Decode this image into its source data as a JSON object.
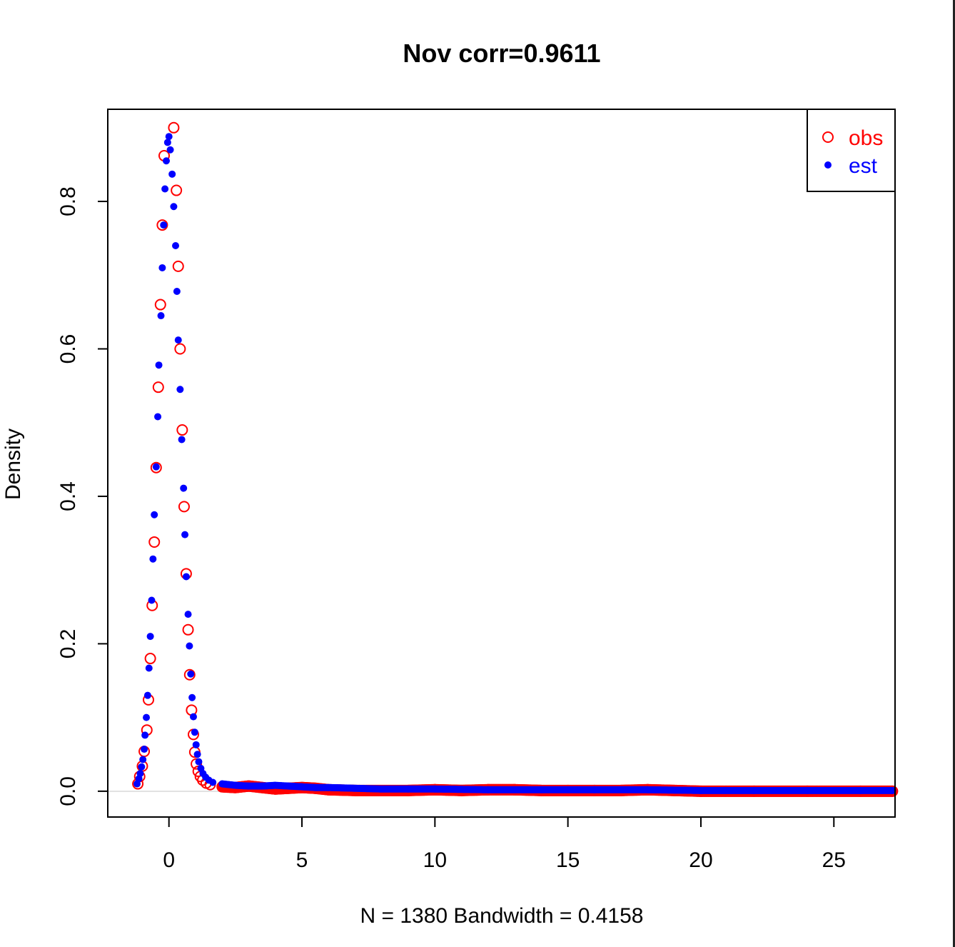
{
  "chart_data": {
    "type": "scatter",
    "title": "Nov corr=0.9611",
    "xlabel": "N = 1380   Bandwidth = 0.4158",
    "ylabel": "Density",
    "xlim": [
      -2.3,
      27.3
    ],
    "ylim": [
      -0.035,
      0.925
    ],
    "x_ticks": [
      0,
      5,
      10,
      15,
      20,
      25
    ],
    "x_tick_labels": [
      "0",
      "5",
      "10",
      "15",
      "20",
      "25"
    ],
    "y_ticks": [
      0.0,
      0.2,
      0.4,
      0.6,
      0.8
    ],
    "y_tick_labels": [
      "0.0",
      "0.2",
      "0.4",
      "0.6",
      "0.8"
    ],
    "legend": {
      "position": "top-right",
      "entries": [
        "obs",
        "est"
      ]
    },
    "colors": {
      "obs": "#ff0000",
      "est": "#0000ff",
      "zero_line": "#d9d9d9"
    },
    "series": [
      {
        "name": "obs",
        "marker": "open-circle",
        "peak_points": [
          [
            -1.17,
            0.01
          ],
          [
            -1.1,
            0.02
          ],
          [
            -1.0,
            0.034
          ],
          [
            -0.93,
            0.054
          ],
          [
            -0.83,
            0.083
          ],
          [
            -0.77,
            0.124
          ],
          [
            -0.7,
            0.18
          ],
          [
            -0.63,
            0.252
          ],
          [
            -0.55,
            0.338
          ],
          [
            -0.48,
            0.439
          ],
          [
            -0.4,
            0.548
          ],
          [
            -0.32,
            0.66
          ],
          [
            -0.25,
            0.768
          ],
          [
            -0.18,
            0.862
          ],
          [
            0.18,
            0.9
          ],
          [
            0.28,
            0.815
          ],
          [
            0.35,
            0.712
          ],
          [
            0.42,
            0.6
          ],
          [
            0.5,
            0.49
          ],
          [
            0.57,
            0.386
          ],
          [
            0.65,
            0.295
          ],
          [
            0.72,
            0.219
          ],
          [
            0.78,
            0.158
          ],
          [
            0.85,
            0.11
          ],
          [
            0.92,
            0.077
          ],
          [
            0.97,
            0.053
          ],
          [
            1.03,
            0.037
          ],
          [
            1.1,
            0.027
          ],
          [
            1.18,
            0.02
          ],
          [
            1.27,
            0.015
          ],
          [
            1.4,
            0.011
          ],
          [
            1.55,
            0.009
          ]
        ],
        "tail_points": [
          [
            2,
            0.006
          ],
          [
            2.5,
            0.005
          ],
          [
            3,
            0.007
          ],
          [
            3.5,
            0.005
          ],
          [
            4,
            0.003
          ],
          [
            4.5,
            0.004
          ],
          [
            5,
            0.005
          ],
          [
            5.5,
            0.004
          ],
          [
            6,
            0.002
          ],
          [
            7,
            0.001
          ],
          [
            8,
            0.001
          ],
          [
            9,
            0.001
          ],
          [
            10,
            0.002
          ],
          [
            11,
            0.001
          ],
          [
            12,
            0.002
          ],
          [
            13,
            0.002
          ],
          [
            14,
            0.001
          ],
          [
            15,
            0.001
          ],
          [
            16,
            0.001
          ],
          [
            17,
            0.001
          ],
          [
            18,
            0.002
          ],
          [
            19,
            0.001
          ],
          [
            20,
            0.0
          ],
          [
            22,
            0.0
          ],
          [
            24,
            0.0
          ],
          [
            26,
            0.0
          ],
          [
            27.2,
            0.0
          ]
        ]
      },
      {
        "name": "est",
        "marker": "filled-dot",
        "peak_points": [
          [
            -1.2,
            0.01
          ],
          [
            -1.13,
            0.017
          ],
          [
            -1.08,
            0.024
          ],
          [
            -1.03,
            0.033
          ],
          [
            -0.98,
            0.043
          ],
          [
            -0.93,
            0.057
          ],
          [
            -0.9,
            0.076
          ],
          [
            -0.85,
            0.1
          ],
          [
            -0.8,
            0.13
          ],
          [
            -0.75,
            0.167
          ],
          [
            -0.7,
            0.21
          ],
          [
            -0.65,
            0.259
          ],
          [
            -0.6,
            0.315
          ],
          [
            -0.55,
            0.375
          ],
          [
            -0.48,
            0.44
          ],
          [
            -0.42,
            0.508
          ],
          [
            -0.38,
            0.578
          ],
          [
            -0.3,
            0.645
          ],
          [
            -0.25,
            0.71
          ],
          [
            -0.2,
            0.768
          ],
          [
            -0.15,
            0.817
          ],
          [
            -0.1,
            0.855
          ],
          [
            -0.05,
            0.88
          ],
          [
            0.0,
            0.888
          ],
          [
            0.05,
            0.87
          ],
          [
            0.12,
            0.837
          ],
          [
            0.18,
            0.793
          ],
          [
            0.25,
            0.74
          ],
          [
            0.3,
            0.678
          ],
          [
            0.35,
            0.612
          ],
          [
            0.42,
            0.545
          ],
          [
            0.48,
            0.477
          ],
          [
            0.55,
            0.411
          ],
          [
            0.6,
            0.348
          ],
          [
            0.65,
            0.291
          ],
          [
            0.72,
            0.24
          ],
          [
            0.77,
            0.197
          ],
          [
            0.82,
            0.159
          ],
          [
            0.87,
            0.127
          ],
          [
            0.92,
            0.101
          ],
          [
            0.97,
            0.08
          ],
          [
            1.02,
            0.063
          ],
          [
            1.07,
            0.05
          ],
          [
            1.12,
            0.04
          ],
          [
            1.2,
            0.031
          ],
          [
            1.28,
            0.024
          ],
          [
            1.38,
            0.019
          ],
          [
            1.5,
            0.015
          ],
          [
            1.65,
            0.012
          ]
        ],
        "tail_points": [
          [
            2,
            0.01
          ],
          [
            2.5,
            0.008
          ],
          [
            3,
            0.007
          ],
          [
            3.5,
            0.007
          ],
          [
            4,
            0.008
          ],
          [
            4.5,
            0.007
          ],
          [
            5,
            0.006
          ],
          [
            5.5,
            0.005
          ],
          [
            6,
            0.005
          ],
          [
            7,
            0.004
          ],
          [
            8,
            0.003
          ],
          [
            9,
            0.003
          ],
          [
            10,
            0.003
          ],
          [
            12,
            0.002
          ],
          [
            14,
            0.002
          ],
          [
            16,
            0.002
          ],
          [
            18,
            0.002
          ],
          [
            20,
            0.001
          ],
          [
            22,
            0.001
          ],
          [
            24,
            0.001
          ],
          [
            26,
            0.001
          ],
          [
            27.2,
            0.001
          ]
        ]
      }
    ]
  }
}
